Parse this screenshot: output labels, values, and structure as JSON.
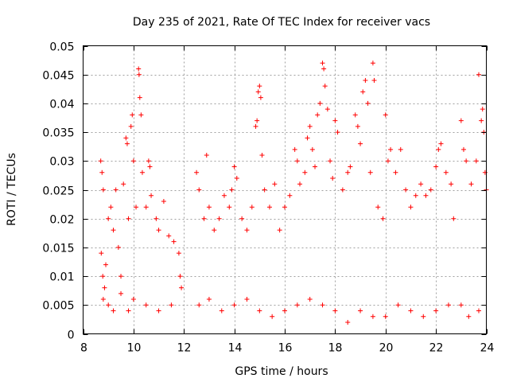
{
  "chart_data": {
    "type": "scatter",
    "title": "Day 235 of 2021, Rate Of TEC Index for receiver vacs",
    "xlabel": "GPS time / hours",
    "ylabel": "ROTI / TECUs",
    "xlim": [
      8,
      24
    ],
    "ylim": [
      0,
      0.05
    ],
    "xticks": [
      8,
      10,
      12,
      14,
      16,
      18,
      20,
      22,
      24
    ],
    "yticks": [
      0,
      0.005,
      0.01,
      0.015,
      0.02,
      0.025,
      0.03,
      0.035,
      0.04,
      0.045,
      0.05
    ],
    "ytick_labels": [
      "0",
      "0.005",
      "0.01",
      "0.015",
      "0.02",
      "0.025",
      "0.03",
      "0.035",
      "0.04",
      "0.045",
      "0.05"
    ],
    "grid": true,
    "marker": "+",
    "color": "#ff0000",
    "series": [
      {
        "name": "ROTI",
        "description": "dense scatter; gap between ~11.9 and ~12.5 h",
        "points": [
          [
            8.7,
            0.03
          ],
          [
            8.75,
            0.028
          ],
          [
            8.8,
            0.025
          ],
          [
            8.72,
            0.014
          ],
          [
            8.78,
            0.01
          ],
          [
            8.8,
            0.006
          ],
          [
            8.85,
            0.008
          ],
          [
            8.9,
            0.012
          ],
          [
            9.0,
            0.02
          ],
          [
            9.1,
            0.022
          ],
          [
            9.2,
            0.018
          ],
          [
            9.3,
            0.025
          ],
          [
            9.4,
            0.015
          ],
          [
            9.5,
            0.01
          ],
          [
            9.6,
            0.026
          ],
          [
            9.7,
            0.034
          ],
          [
            9.75,
            0.033
          ],
          [
            9.8,
            0.02
          ],
          [
            9.9,
            0.036
          ],
          [
            9.95,
            0.038
          ],
          [
            10.0,
            0.03
          ],
          [
            10.1,
            0.022
          ],
          [
            10.2,
            0.046
          ],
          [
            10.22,
            0.045
          ],
          [
            10.25,
            0.041
          ],
          [
            10.3,
            0.038
          ],
          [
            10.35,
            0.028
          ],
          [
            10.5,
            0.022
          ],
          [
            10.6,
            0.03
          ],
          [
            10.65,
            0.029
          ],
          [
            10.7,
            0.024
          ],
          [
            10.9,
            0.02
          ],
          [
            11.0,
            0.018
          ],
          [
            11.2,
            0.023
          ],
          [
            11.4,
            0.017
          ],
          [
            11.6,
            0.016
          ],
          [
            11.8,
            0.014
          ],
          [
            11.85,
            0.01
          ],
          [
            11.9,
            0.008
          ],
          [
            12.5,
            0.028
          ],
          [
            12.6,
            0.025
          ],
          [
            12.8,
            0.02
          ],
          [
            12.9,
            0.031
          ],
          [
            13.0,
            0.022
          ],
          [
            13.2,
            0.018
          ],
          [
            13.4,
            0.02
          ],
          [
            13.6,
            0.024
          ],
          [
            13.8,
            0.022
          ],
          [
            13.9,
            0.025
          ],
          [
            14.0,
            0.029
          ],
          [
            14.1,
            0.027
          ],
          [
            14.3,
            0.02
          ],
          [
            14.5,
            0.018
          ],
          [
            14.7,
            0.022
          ],
          [
            14.85,
            0.036
          ],
          [
            14.9,
            0.037
          ],
          [
            14.95,
            0.042
          ],
          [
            15.0,
            0.043
          ],
          [
            15.05,
            0.041
          ],
          [
            15.1,
            0.031
          ],
          [
            15.2,
            0.025
          ],
          [
            15.4,
            0.022
          ],
          [
            15.6,
            0.026
          ],
          [
            15.8,
            0.018
          ],
          [
            16.0,
            0.022
          ],
          [
            16.2,
            0.024
          ],
          [
            16.4,
            0.032
          ],
          [
            16.5,
            0.03
          ],
          [
            16.6,
            0.026
          ],
          [
            16.8,
            0.028
          ],
          [
            16.9,
            0.034
          ],
          [
            17.0,
            0.036
          ],
          [
            17.1,
            0.032
          ],
          [
            17.2,
            0.029
          ],
          [
            17.3,
            0.038
          ],
          [
            17.4,
            0.04
          ],
          [
            17.5,
            0.047
          ],
          [
            17.55,
            0.046
          ],
          [
            17.6,
            0.043
          ],
          [
            17.7,
            0.039
          ],
          [
            17.8,
            0.03
          ],
          [
            17.9,
            0.027
          ],
          [
            18.0,
            0.037
          ],
          [
            18.1,
            0.035
          ],
          [
            18.3,
            0.025
          ],
          [
            18.5,
            0.028
          ],
          [
            18.6,
            0.029
          ],
          [
            18.8,
            0.038
          ],
          [
            18.9,
            0.036
          ],
          [
            19.0,
            0.033
          ],
          [
            19.1,
            0.042
          ],
          [
            19.2,
            0.044
          ],
          [
            19.3,
            0.04
          ],
          [
            19.4,
            0.028
          ],
          [
            19.5,
            0.047
          ],
          [
            19.55,
            0.044
          ],
          [
            19.7,
            0.022
          ],
          [
            19.9,
            0.02
          ],
          [
            20.0,
            0.038
          ],
          [
            20.1,
            0.03
          ],
          [
            20.2,
            0.032
          ],
          [
            20.4,
            0.028
          ],
          [
            20.6,
            0.032
          ],
          [
            20.8,
            0.025
          ],
          [
            21.0,
            0.022
          ],
          [
            21.2,
            0.024
          ],
          [
            21.4,
            0.026
          ],
          [
            21.6,
            0.024
          ],
          [
            21.8,
            0.025
          ],
          [
            22.0,
            0.029
          ],
          [
            22.1,
            0.032
          ],
          [
            22.2,
            0.033
          ],
          [
            22.4,
            0.028
          ],
          [
            22.6,
            0.026
          ],
          [
            22.7,
            0.02
          ],
          [
            23.0,
            0.037
          ],
          [
            23.1,
            0.032
          ],
          [
            23.2,
            0.03
          ],
          [
            23.4,
            0.026
          ],
          [
            23.6,
            0.03
          ],
          [
            23.7,
            0.045
          ],
          [
            23.8,
            0.037
          ],
          [
            23.85,
            0.039
          ],
          [
            23.9,
            0.035
          ],
          [
            23.95,
            0.028
          ],
          [
            24.0,
            0.025
          ],
          [
            9.0,
            0.005
          ],
          [
            9.2,
            0.004
          ],
          [
            9.5,
            0.007
          ],
          [
            9.8,
            0.004
          ],
          [
            10.0,
            0.006
          ],
          [
            10.5,
            0.005
          ],
          [
            11.0,
            0.004
          ],
          [
            11.5,
            0.005
          ],
          [
            12.6,
            0.005
          ],
          [
            13.0,
            0.006
          ],
          [
            13.5,
            0.004
          ],
          [
            14.0,
            0.005
          ],
          [
            14.5,
            0.006
          ],
          [
            15.0,
            0.004
          ],
          [
            15.5,
            0.003
          ],
          [
            16.0,
            0.004
          ],
          [
            16.5,
            0.005
          ],
          [
            17.0,
            0.006
          ],
          [
            17.5,
            0.005
          ],
          [
            18.0,
            0.004
          ],
          [
            18.5,
            0.002
          ],
          [
            19.0,
            0.004
          ],
          [
            19.5,
            0.003
          ],
          [
            20.0,
            0.003
          ],
          [
            20.5,
            0.005
          ],
          [
            21.0,
            0.004
          ],
          [
            21.5,
            0.003
          ],
          [
            22.0,
            0.004
          ],
          [
            22.5,
            0.005
          ],
          [
            23.0,
            0.005
          ],
          [
            23.3,
            0.003
          ],
          [
            23.7,
            0.004
          ]
        ]
      }
    ]
  }
}
